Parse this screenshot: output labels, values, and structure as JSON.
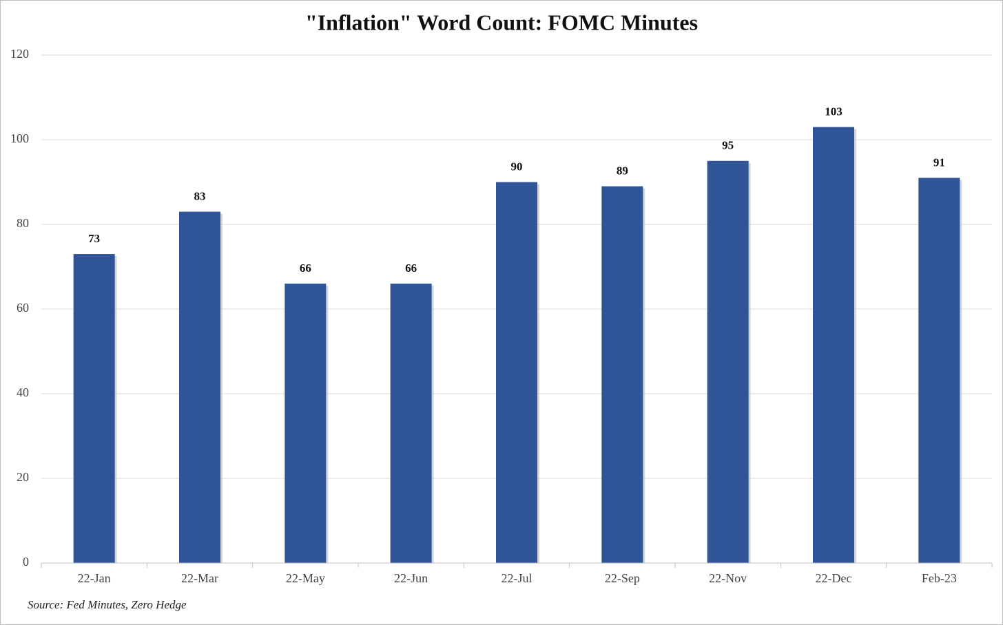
{
  "chart_data": {
    "type": "bar",
    "title": "\"Inflation\" Word Count: FOMC Minutes",
    "categories": [
      "22-Jan",
      "22-Mar",
      "22-May",
      "22-Jun",
      "22-Jul",
      "22-Sep",
      "22-Nov",
      "22-Dec",
      "Feb-23"
    ],
    "values": [
      73,
      83,
      66,
      66,
      90,
      89,
      95,
      103,
      91
    ],
    "color": "#2f5597",
    "ylim": [
      0,
      120
    ],
    "yticks": [
      0,
      20,
      40,
      60,
      80,
      100,
      120
    ],
    "grid": true,
    "source": "Source: Fed Minutes, Zero Hedge"
  }
}
